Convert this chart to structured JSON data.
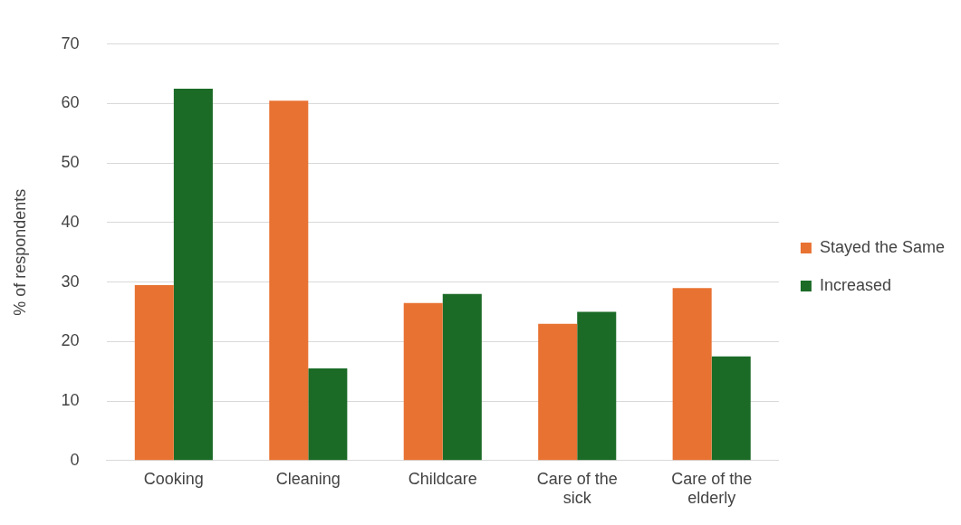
{
  "chart_data": {
    "type": "bar",
    "ylabel": "% of respondents",
    "categories": [
      "Cooking",
      "Cleaning",
      "Childcare",
      "Care of the sick",
      "Care of the elderly"
    ],
    "series": [
      {
        "name": "Stayed the Same",
        "color": "#e87232",
        "values": [
          29.5,
          60.5,
          26.5,
          23,
          29
        ]
      },
      {
        "name": "Increased",
        "color": "#1b6b27",
        "values": [
          62.5,
          15.5,
          28,
          25,
          17.5
        ]
      }
    ],
    "ylim": [
      0,
      70
    ],
    "yticks": [
      0,
      10,
      20,
      30,
      40,
      50,
      60,
      70
    ],
    "grid": "y",
    "legend": "right"
  }
}
